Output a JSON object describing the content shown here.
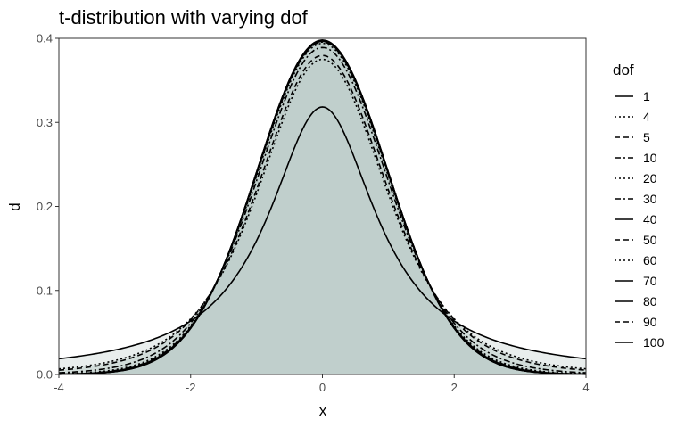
{
  "chart_data": {
    "type": "area",
    "title": "t-distribution with varying dof",
    "xlabel": "x",
    "ylabel": "d",
    "xlim": [
      -4,
      4
    ],
    "ylim": [
      0,
      0.4
    ],
    "x_ticks": [
      "-4",
      "-2",
      "0",
      "2",
      "4"
    ],
    "y_ticks": [
      "0.0",
      "0.1",
      "0.2",
      "0.3",
      "0.4"
    ],
    "grid": false,
    "legend": {
      "title": "dof",
      "placement": "right",
      "entries": [
        "1",
        "4",
        "5",
        "10",
        "20",
        "30",
        "40",
        "50",
        "60",
        "70",
        "80",
        "90",
        "100"
      ]
    },
    "fill_color": "#c0cdcc",
    "line_color": "#000000",
    "series": [
      {
        "name": "1",
        "dof": 1,
        "dash": "solid"
      },
      {
        "name": "4",
        "dof": 4,
        "dash": "dotted"
      },
      {
        "name": "5",
        "dof": 5,
        "dash": "dashed"
      },
      {
        "name": "10",
        "dof": 10,
        "dash": "dashdot"
      },
      {
        "name": "20",
        "dof": 20,
        "dash": "dotted"
      },
      {
        "name": "30",
        "dof": 30,
        "dash": "dashdot"
      },
      {
        "name": "40",
        "dof": 40,
        "dash": "solid"
      },
      {
        "name": "50",
        "dof": 50,
        "dash": "dashed"
      },
      {
        "name": "60",
        "dof": 60,
        "dash": "dotted"
      },
      {
        "name": "70",
        "dof": 70,
        "dash": "solid"
      },
      {
        "name": "80",
        "dof": 80,
        "dash": "solid"
      },
      {
        "name": "90",
        "dof": 90,
        "dash": "dashed"
      },
      {
        "name": "100",
        "dof": 100,
        "dash": "solid"
      }
    ]
  }
}
